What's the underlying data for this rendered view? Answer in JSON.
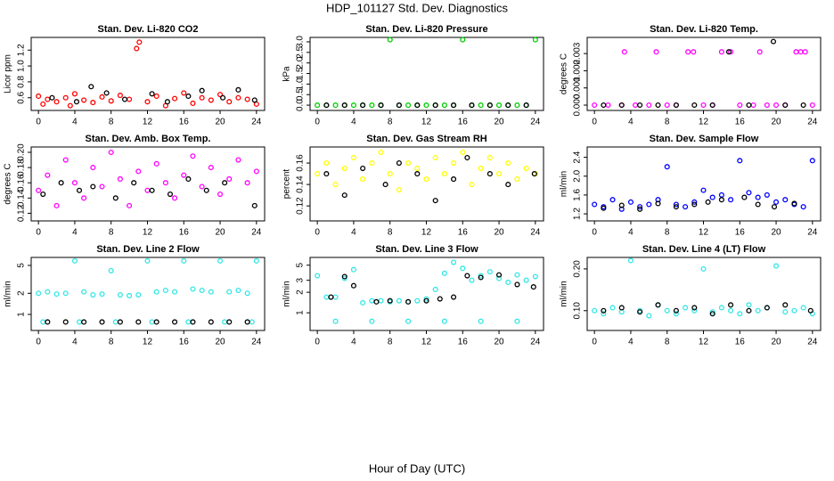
{
  "title": "HDP_101127  Std. Dev. Diagnostics",
  "x_label": "Hour of Day (UTC)",
  "chart_data": [
    {
      "type": "scatter",
      "title": "Stan. Dev. Li-820 CO2",
      "y_label": "Licor ppm",
      "xlim": [
        -0.8,
        24.9
      ],
      "xticks": [
        0,
        4,
        8,
        12,
        16,
        20,
        24
      ],
      "ylim": [
        0.44,
        1.36
      ],
      "yticks": [
        0.6,
        0.8,
        {
          "value": 1,
          "label": "1.0"
        },
        1.2
      ],
      "series": [
        {
          "color": "#ff0000",
          "x": [
            0,
            0.5,
            1,
            2,
            3,
            3.5,
            4,
            5,
            6,
            7,
            8,
            9,
            10,
            10.8,
            11.1,
            12,
            13,
            14,
            15,
            16,
            17,
            18,
            19,
            20,
            21,
            22,
            23,
            24
          ],
          "values": [
            0.62,
            0.52,
            0.58,
            0.55,
            0.6,
            0.5,
            0.65,
            0.57,
            0.54,
            0.61,
            0.56,
            0.63,
            0.58,
            1.22,
            1.3,
            0.55,
            0.62,
            0.5,
            0.59,
            0.66,
            0.53,
            0.6,
            0.57,
            0.64,
            0.55,
            0.6,
            0.58,
            0.52
          ]
        },
        {
          "color": "#000000",
          "x": [
            1.5,
            4.2,
            5.8,
            7.5,
            9.5,
            12.5,
            14.2,
            16.5,
            18,
            20.3,
            22,
            23.8
          ],
          "values": [
            0.6,
            0.55,
            0.74,
            0.66,
            0.58,
            0.65,
            0.55,
            0.62,
            0.69,
            0.6,
            0.7,
            0.57
          ]
        }
      ]
    },
    {
      "type": "scatter",
      "title": "Stan. Dev. Li-820 Pressure",
      "y_label": "kPa",
      "xlim": [
        -0.8,
        24.9
      ],
      "xticks": [
        0,
        4,
        8,
        12,
        16,
        20,
        24
      ],
      "ylim": [
        -0.25,
        3.21
      ],
      "yticks": [
        {
          "value": 0,
          "label": "0.0"
        },
        0.5,
        {
          "value": 1,
          "label": "1.0"
        },
        1.5,
        {
          "value": 2,
          "label": "2.0"
        },
        2.5,
        {
          "value": 3,
          "label": "3.0"
        }
      ],
      "series": [
        {
          "color": "#00cd00",
          "x": [
            0,
            1,
            2,
            3,
            4,
            5,
            6,
            7,
            8,
            9,
            10,
            11,
            12,
            13,
            14,
            15,
            16,
            17,
            18,
            19,
            20,
            21,
            22,
            23,
            24
          ],
          "values": [
            0,
            0,
            0,
            0,
            0,
            0,
            0,
            0,
            3.1,
            0,
            0,
            0,
            0,
            0,
            0,
            0,
            3.1,
            0,
            0,
            0,
            0,
            0,
            0,
            0,
            3.1
          ]
        },
        {
          "color": "#000000",
          "x": [
            1,
            3,
            5,
            7,
            9,
            11,
            13,
            15,
            17,
            19,
            21,
            23
          ],
          "values": [
            0,
            0,
            0,
            0,
            0,
            0,
            0,
            0,
            0,
            0,
            0,
            0
          ]
        }
      ]
    },
    {
      "type": "scatter",
      "title": "Stan. Dev. Li-820 Temp.",
      "y_label": "degrees C",
      "xlim": [
        -0.8,
        24.9
      ],
      "xticks": [
        0,
        4,
        8,
        12,
        16,
        20,
        24
      ],
      "ylim": [
        -0.00031,
        0.00394
      ],
      "yticks": [
        {
          "value": 0,
          "label": "0.000"
        },
        0.001,
        0.002,
        0.003
      ],
      "series": [
        {
          "color": "#ff00ff",
          "x": [
            0,
            1.5,
            3,
            3.3,
            4.5,
            6,
            6.8,
            8,
            9,
            10.3,
            10.9,
            12,
            13,
            14,
            15,
            16,
            17.5,
            18.2,
            19,
            20,
            21,
            22.2,
            22.7,
            23.2,
            24
          ],
          "values": [
            0,
            0,
            0,
            0.0031,
            0,
            0,
            0.0031,
            0,
            0,
            0.0031,
            0.0031,
            0,
            0,
            0.0031,
            0.0031,
            0,
            0,
            0.0031,
            0,
            0,
            0,
            0.0031,
            0.0031,
            0.0031,
            0
          ]
        },
        {
          "color": "#000000",
          "x": [
            1,
            3,
            5,
            7,
            9,
            11,
            13,
            14.8,
            17,
            19.7,
            21,
            23
          ],
          "values": [
            0,
            0,
            0,
            0,
            0,
            0,
            0,
            0.0031,
            0,
            0.0037,
            0,
            0
          ]
        }
      ]
    },
    {
      "type": "scatter",
      "title": "Stan. Dev. Amb. Box Temp.",
      "y_label": "degrees C",
      "xlim": [
        -0.8,
        24.9
      ],
      "xticks": [
        0,
        4,
        8,
        12,
        16,
        20,
        24
      ],
      "ylim": [
        0.11,
        0.207
      ],
      "yticks": [
        0.12,
        0.14,
        0.16,
        0.18,
        {
          "value": 0.2,
          "label": "0.20"
        }
      ],
      "series": [
        {
          "color": "#ff00ff",
          "x": [
            0,
            1,
            2,
            3,
            4,
            5,
            6,
            7,
            8,
            9,
            10,
            11,
            12,
            13,
            14,
            15,
            16,
            17,
            18,
            19,
            20,
            21,
            22,
            23,
            24
          ],
          "values": [
            0.15,
            0.17,
            0.13,
            0.19,
            0.16,
            0.14,
            0.18,
            0.155,
            0.2,
            0.165,
            0.13,
            0.175,
            0.15,
            0.185,
            0.16,
            0.14,
            0.17,
            0.195,
            0.155,
            0.18,
            0.145,
            0.165,
            0.19,
            0.16,
            0.175
          ]
        },
        {
          "color": "#000000",
          "x": [
            0.5,
            2.5,
            4.5,
            6,
            8.5,
            10.5,
            12.5,
            14.5,
            16.5,
            18.5,
            20.5,
            23.8
          ],
          "values": [
            0.145,
            0.16,
            0.15,
            0.155,
            0.14,
            0.16,
            0.15,
            0.145,
            0.165,
            0.15,
            0.16,
            0.13
          ]
        }
      ]
    },
    {
      "type": "scatter",
      "title": "Stan. Dev. Gas Stream RH",
      "y_label": "percent",
      "xlim": [
        -0.8,
        24.9
      ],
      "xticks": [
        0,
        4,
        8,
        12,
        16,
        20,
        24
      ],
      "ylim": [
        0.106,
        0.175
      ],
      "yticks": [
        0.12,
        0.14,
        0.16
      ],
      "series": [
        {
          "color": "#ffff00",
          "x": [
            0,
            1,
            2,
            3,
            4,
            5,
            6,
            7,
            8,
            9,
            10,
            11,
            12,
            13,
            14,
            15,
            16,
            17,
            18,
            19,
            20,
            21,
            22,
            23,
            24
          ],
          "values": [
            0.15,
            0.16,
            0.14,
            0.155,
            0.165,
            0.145,
            0.16,
            0.17,
            0.15,
            0.135,
            0.16,
            0.155,
            0.145,
            0.165,
            0.15,
            0.16,
            0.17,
            0.14,
            0.155,
            0.165,
            0.15,
            0.16,
            0.145,
            0.155,
            0.15
          ]
        },
        {
          "color": "#000000",
          "x": [
            1,
            3,
            5,
            7.5,
            9,
            11,
            13,
            15,
            16.5,
            19,
            21,
            23.9
          ],
          "values": [
            0.15,
            0.13,
            0.155,
            0.14,
            0.16,
            0.15,
            0.125,
            0.145,
            0.165,
            0.15,
            0.14,
            0.15
          ]
        }
      ]
    },
    {
      "type": "scatter",
      "title": "Stan. Dev. Sample Flow",
      "y_label": "ml/min",
      "xlim": [
        -0.8,
        24.9
      ],
      "xticks": [
        0,
        4,
        8,
        12,
        16,
        20,
        24
      ],
      "ylim": [
        1.05,
        2.62
      ],
      "yticks": [
        1.2,
        1.6,
        {
          "value": 2,
          "label": "2.0"
        },
        2.4
      ],
      "series": [
        {
          "color": "#0000ff",
          "x": [
            0,
            1,
            2,
            3,
            4,
            5,
            6,
            7,
            8,
            9,
            10,
            11,
            12,
            13,
            14,
            15,
            16,
            17,
            18,
            19,
            20,
            21,
            22,
            23,
            24
          ],
          "values": [
            1.4,
            1.35,
            1.5,
            1.3,
            1.45,
            1.35,
            1.4,
            1.5,
            2.2,
            1.4,
            1.35,
            1.45,
            1.7,
            1.55,
            1.6,
            1.5,
            2.33,
            1.65,
            1.55,
            1.6,
            1.45,
            1.5,
            1.4,
            1.35,
            2.33
          ]
        },
        {
          "color": "#000000",
          "x": [
            1,
            3,
            5,
            7,
            9,
            11,
            12.5,
            14,
            16.5,
            18,
            19.8,
            22
          ],
          "values": [
            1.32,
            1.38,
            1.3,
            1.42,
            1.35,
            1.4,
            1.45,
            1.5,
            1.55,
            1.4,
            1.35,
            1.42
          ]
        }
      ]
    },
    {
      "type": "scatter",
      "title": "Stan. Dev. Line 2 Flow",
      "y_label": "ml/min",
      "log_y": true,
      "xlim": [
        -0.8,
        24.9
      ],
      "xticks": [
        0,
        4,
        8,
        12,
        16,
        20,
        24
      ],
      "ylim": [
        0.59,
        6.5
      ],
      "yticks": [
        1,
        2,
        5
      ],
      "series": [
        {
          "color": "#33e6e6",
          "x": [
            0,
            1,
            2,
            3,
            4,
            5,
            6,
            7,
            8,
            9,
            10,
            11,
            12,
            13,
            14,
            15,
            16,
            17,
            18,
            19,
            20,
            21,
            22,
            23,
            24,
            0.5,
            4.5,
            8.5,
            12.5,
            16.5,
            20.5,
            23.5
          ],
          "values": [
            2.0,
            2.1,
            1.95,
            2.0,
            5.8,
            2.1,
            1.9,
            1.95,
            4.2,
            1.9,
            1.85,
            1.9,
            5.8,
            2.1,
            2.2,
            2.1,
            5.8,
            2.3,
            2.2,
            2.1,
            5.8,
            2.1,
            2.2,
            2.0,
            5.8,
            0.78,
            0.78,
            0.78,
            0.78,
            0.78,
            0.78,
            0.78
          ]
        },
        {
          "color": "#000000",
          "x": [
            1,
            3,
            5,
            7,
            9,
            11,
            13,
            15,
            17,
            19,
            21,
            23
          ],
          "values": [
            0.78,
            0.78,
            0.78,
            0.78,
            0.78,
            0.78,
            0.78,
            0.78,
            0.78,
            0.78,
            0.78,
            0.78
          ]
        }
      ]
    },
    {
      "type": "scatter",
      "title": "Stan. Dev. Line 3 Flow",
      "y_label": "ml/min",
      "log_y": true,
      "xlim": [
        -0.8,
        24.9
      ],
      "xticks": [
        0,
        4,
        8,
        12,
        16,
        20,
        24
      ],
      "ylim": [
        0.55,
        6.5
      ],
      "yticks": [
        1,
        2,
        3,
        5
      ],
      "series": [
        {
          "color": "#33e6e6",
          "x": [
            0,
            1,
            2,
            3,
            4,
            5,
            6,
            7,
            8,
            9,
            10,
            11,
            12,
            13,
            14,
            15,
            16,
            17,
            18,
            19,
            20,
            21,
            22,
            23,
            24,
            2,
            6,
            10,
            14,
            18,
            22
          ],
          "values": [
            3.5,
            1.7,
            1.7,
            3.2,
            4.3,
            1.4,
            1.5,
            1.5,
            1.45,
            1.5,
            1.45,
            1.5,
            1.6,
            2.2,
            3.8,
            5.5,
            4.5,
            3.0,
            3.5,
            4.0,
            3.2,
            2.8,
            3.6,
            3.0,
            3.4,
            0.75,
            0.75,
            0.75,
            0.75,
            0.75,
            0.75
          ]
        },
        {
          "color": "#000000",
          "x": [
            1.5,
            3,
            4,
            6.5,
            8,
            10,
            12,
            13.5,
            15,
            16.5,
            18,
            20,
            22,
            23.8
          ],
          "values": [
            1.7,
            3.4,
            2.5,
            1.45,
            1.5,
            1.45,
            1.5,
            1.6,
            1.7,
            3.5,
            3.3,
            3.6,
            2.6,
            2.4
          ]
        }
      ]
    },
    {
      "type": "scatter",
      "title": "Stan. Dev. Line 4 (LT) Flow",
      "y_label": "ml/min",
      "log_y": true,
      "xlim": [
        -0.8,
        24.9
      ],
      "xticks": [
        0,
        4,
        8,
        12,
        16,
        20,
        24
      ],
      "ylim": [
        0.072,
        0.242
      ],
      "yticks": [
        {
          "value": 0.1,
          "label": "0.10"
        },
        {
          "value": 0.2,
          "label": "0.20"
        }
      ],
      "series": [
        {
          "color": "#33e6e6",
          "x": [
            0,
            1,
            2,
            3,
            4,
            5,
            6,
            7,
            8,
            9,
            10,
            11,
            12,
            13,
            14,
            15,
            16,
            17,
            18,
            19,
            20,
            21,
            22,
            23,
            24
          ],
          "values": [
            0.1,
            0.095,
            0.105,
            0.098,
            0.23,
            0.1,
            0.092,
            0.11,
            0.1,
            0.095,
            0.105,
            0.1,
            0.2,
            0.098,
            0.105,
            0.1,
            0.095,
            0.11,
            0.1,
            0.105,
            0.21,
            0.098,
            0.1,
            0.105,
            0.095
          ]
        },
        {
          "color": "#000000",
          "x": [
            1,
            3,
            5,
            7,
            9,
            11,
            13,
            15,
            17,
            19,
            21,
            23.8
          ],
          "values": [
            0.1,
            0.105,
            0.098,
            0.11,
            0.1,
            0.105,
            0.095,
            0.11,
            0.1,
            0.105,
            0.11,
            0.1
          ]
        }
      ]
    }
  ]
}
